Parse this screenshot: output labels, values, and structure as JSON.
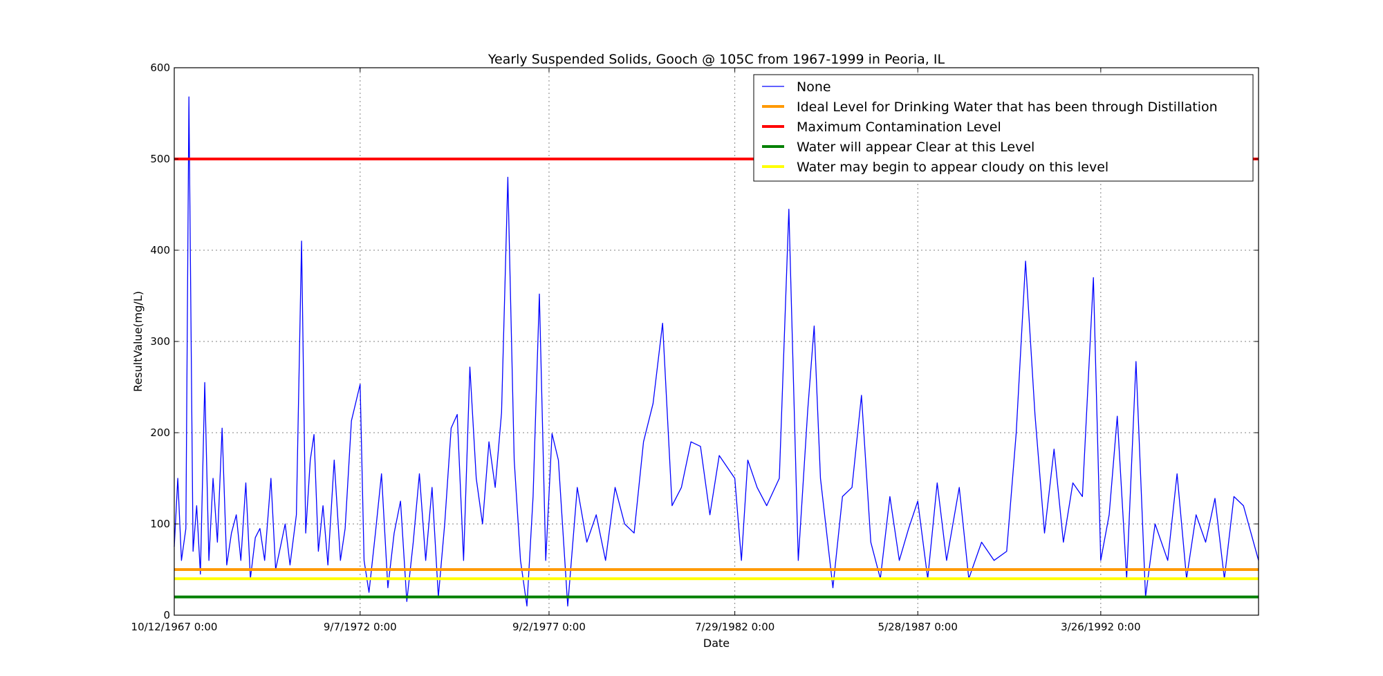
{
  "chart_data": {
    "type": "line",
    "title": "Yearly Suspended Solids, Gooch @ 105C from 1967-1999 in Peoria, IL",
    "xlabel": "Date",
    "ylabel": "ResultValue(mg/L)",
    "x_range": [
      "1967-10-12",
      "1996-05-25"
    ],
    "ylim": [
      0,
      600
    ],
    "yticks": [
      0,
      100,
      200,
      300,
      400,
      500,
      600
    ],
    "xticks": [
      {
        "date": "1967-10-12",
        "label": "10/12/1967 0:00"
      },
      {
        "date": "1972-09-07",
        "label": "9/7/1972 0:00"
      },
      {
        "date": "1977-09-02",
        "label": "9/2/1977 0:00"
      },
      {
        "date": "1982-07-29",
        "label": "7/29/1982 0:00"
      },
      {
        "date": "1987-05-28",
        "label": "5/28/1987 0:00"
      },
      {
        "date": "1992-03-26",
        "label": "3/26/1992 0:00"
      }
    ],
    "grid": true,
    "legend_position": "top-right",
    "series": [
      {
        "name": "None",
        "color": "#0000ff",
        "points": [
          [
            "1967-10-12",
            75
          ],
          [
            "1967-11-15",
            150
          ],
          [
            "1967-12-20",
            60
          ],
          [
            "1968-02-01",
            95
          ],
          [
            "1968-03-01",
            568
          ],
          [
            "1968-04-10",
            70
          ],
          [
            "1968-05-15",
            120
          ],
          [
            "1968-06-20",
            45
          ],
          [
            "1968-08-01",
            255
          ],
          [
            "1968-09-10",
            60
          ],
          [
            "1968-10-20",
            150
          ],
          [
            "1968-12-01",
            80
          ],
          [
            "1969-01-15",
            205
          ],
          [
            "1969-03-01",
            55
          ],
          [
            "1969-04-15",
            90
          ],
          [
            "1969-06-01",
            110
          ],
          [
            "1969-07-15",
            60
          ],
          [
            "1969-09-01",
            145
          ],
          [
            "1969-10-15",
            40
          ],
          [
            "1969-12-01",
            85
          ],
          [
            "1970-01-15",
            95
          ],
          [
            "1970-03-01",
            60
          ],
          [
            "1970-05-01",
            150
          ],
          [
            "1970-06-15",
            50
          ],
          [
            "1970-08-01",
            75
          ],
          [
            "1970-09-15",
            100
          ],
          [
            "1970-11-01",
            55
          ],
          [
            "1971-01-01",
            110
          ],
          [
            "1971-02-20",
            410
          ],
          [
            "1971-04-01",
            90
          ],
          [
            "1971-05-15",
            170
          ],
          [
            "1971-06-20",
            198
          ],
          [
            "1971-08-01",
            70
          ],
          [
            "1971-09-15",
            120
          ],
          [
            "1971-11-01",
            55
          ],
          [
            "1972-01-01",
            170
          ],
          [
            "1972-03-01",
            60
          ],
          [
            "1972-04-15",
            95
          ],
          [
            "1972-06-15",
            213
          ],
          [
            "1972-09-07",
            253
          ],
          [
            "1972-10-15",
            60
          ],
          [
            "1972-12-01",
            25
          ],
          [
            "1973-02-01",
            90
          ],
          [
            "1973-04-01",
            155
          ],
          [
            "1973-06-01",
            30
          ],
          [
            "1973-08-01",
            90
          ],
          [
            "1973-10-01",
            125
          ],
          [
            "1973-12-01",
            15
          ],
          [
            "1974-02-01",
            80
          ],
          [
            "1974-04-01",
            155
          ],
          [
            "1974-06-01",
            60
          ],
          [
            "1974-08-01",
            140
          ],
          [
            "1974-10-01",
            20
          ],
          [
            "1974-12-01",
            100
          ],
          [
            "1975-02-01",
            205
          ],
          [
            "1975-04-01",
            220
          ],
          [
            "1975-06-01",
            60
          ],
          [
            "1975-08-01",
            272
          ],
          [
            "1975-10-01",
            150
          ],
          [
            "1975-12-01",
            100
          ],
          [
            "1976-02-01",
            190
          ],
          [
            "1976-04-01",
            140
          ],
          [
            "1976-06-01",
            222
          ],
          [
            "1976-08-01",
            480
          ],
          [
            "1976-10-01",
            170
          ],
          [
            "1976-12-01",
            60
          ],
          [
            "1977-02-01",
            10
          ],
          [
            "1977-04-01",
            130
          ],
          [
            "1977-06-01",
            352
          ],
          [
            "1977-08-01",
            60
          ],
          [
            "1977-10-01",
            199
          ],
          [
            "1977-12-01",
            170
          ],
          [
            "1978-03-01",
            10
          ],
          [
            "1978-06-01",
            140
          ],
          [
            "1978-09-01",
            80
          ],
          [
            "1978-12-01",
            110
          ],
          [
            "1979-03-01",
            60
          ],
          [
            "1979-06-01",
            140
          ],
          [
            "1979-09-01",
            100
          ],
          [
            "1979-12-01",
            90
          ],
          [
            "1980-03-01",
            190
          ],
          [
            "1980-06-01",
            232
          ],
          [
            "1980-09-01",
            320
          ],
          [
            "1980-12-01",
            120
          ],
          [
            "1981-03-01",
            140
          ],
          [
            "1981-06-01",
            190
          ],
          [
            "1981-09-01",
            185
          ],
          [
            "1981-12-01",
            110
          ],
          [
            "1982-03-01",
            175
          ],
          [
            "1982-07-29",
            150
          ],
          [
            "1982-10-01",
            60
          ],
          [
            "1982-12-01",
            170
          ],
          [
            "1983-03-01",
            140
          ],
          [
            "1983-06-01",
            120
          ],
          [
            "1983-10-01",
            150
          ],
          [
            "1984-01-01",
            445
          ],
          [
            "1984-04-01",
            60
          ],
          [
            "1984-07-01",
            225
          ],
          [
            "1984-09-01",
            317
          ],
          [
            "1984-11-01",
            150
          ],
          [
            "1985-03-01",
            30
          ],
          [
            "1985-06-01",
            130
          ],
          [
            "1985-09-01",
            140
          ],
          [
            "1985-12-01",
            241
          ],
          [
            "1986-03-01",
            80
          ],
          [
            "1986-06-01",
            40
          ],
          [
            "1986-09-01",
            130
          ],
          [
            "1986-12-01",
            60
          ],
          [
            "1987-03-01",
            95
          ],
          [
            "1987-05-28",
            125
          ],
          [
            "1987-09-01",
            40
          ],
          [
            "1987-12-01",
            145
          ],
          [
            "1988-03-01",
            60
          ],
          [
            "1988-07-01",
            140
          ],
          [
            "1988-10-01",
            40
          ],
          [
            "1989-02-01",
            80
          ],
          [
            "1989-06-01",
            60
          ],
          [
            "1989-10-01",
            70
          ],
          [
            "1990-01-01",
            200
          ],
          [
            "1990-04-01",
            388
          ],
          [
            "1990-07-01",
            220
          ],
          [
            "1990-10-01",
            90
          ],
          [
            "1991-01-01",
            182
          ],
          [
            "1991-04-01",
            80
          ],
          [
            "1991-07-01",
            145
          ],
          [
            "1991-10-01",
            130
          ],
          [
            "1992-01-15",
            370
          ],
          [
            "1992-03-26",
            60
          ],
          [
            "1992-06-15",
            110
          ],
          [
            "1992-09-01",
            218
          ],
          [
            "1992-12-01",
            40
          ],
          [
            "1993-03-01",
            278
          ],
          [
            "1993-06-01",
            20
          ],
          [
            "1993-09-01",
            100
          ],
          [
            "1994-01-01",
            60
          ],
          [
            "1994-04-01",
            155
          ],
          [
            "1994-07-01",
            40
          ],
          [
            "1994-10-01",
            110
          ],
          [
            "1995-01-01",
            80
          ],
          [
            "1995-04-01",
            128
          ],
          [
            "1995-07-01",
            40
          ],
          [
            "1995-10-01",
            130
          ],
          [
            "1996-01-01",
            120
          ],
          [
            "1996-05-25",
            60
          ]
        ]
      },
      {
        "name": "Ideal Level for Drinking Water that has been through Distillation",
        "color": "#ff9900",
        "value": 50
      },
      {
        "name": "Maximum Contamination Level",
        "color": "#ff0000",
        "value": 500
      },
      {
        "name": "Water will appear Clear at this Level",
        "color": "#008000",
        "value": 20
      },
      {
        "name": "Water may begin to appear cloudy on this level",
        "color": "#ffff00",
        "value": 40
      }
    ]
  }
}
